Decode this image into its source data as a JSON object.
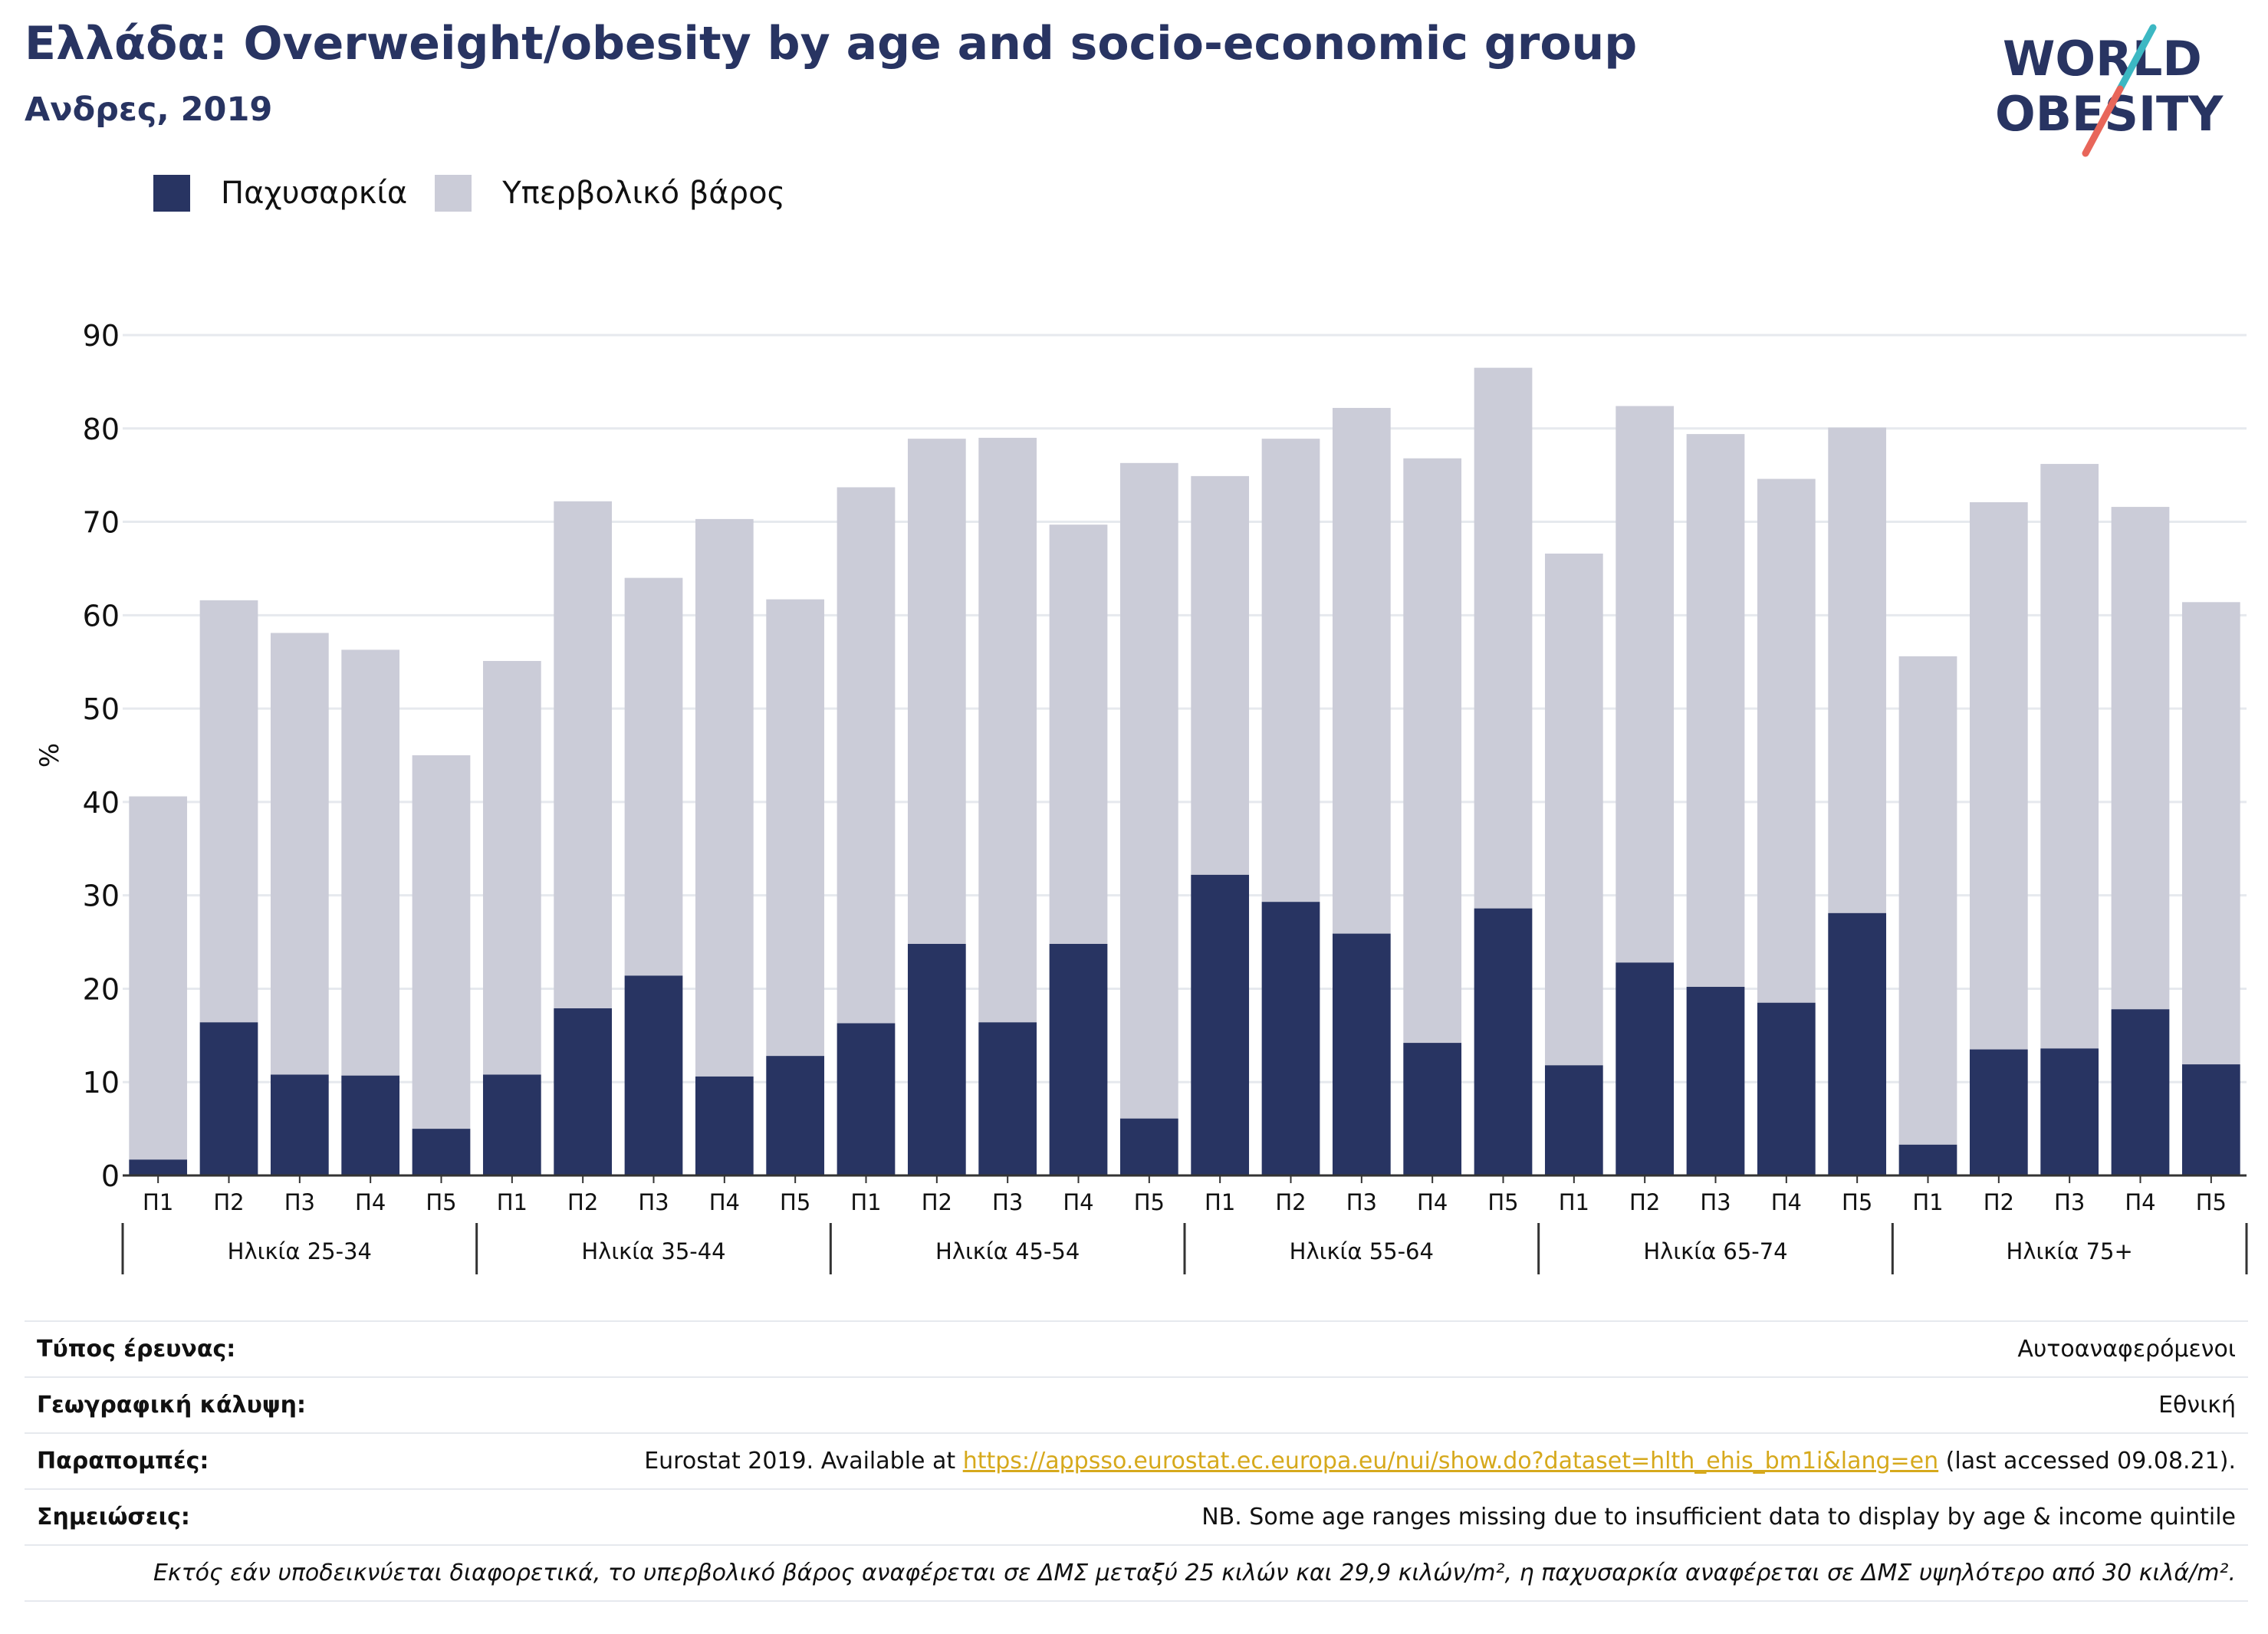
{
  "header": {
    "title": "Ελλάδα: Overweight/obesity by age and socio-economic group",
    "subtitle": "Ανδρες, 2019"
  },
  "logo": {
    "line1": "WORLD",
    "line2": "OBESITY",
    "colors": {
      "text": "#283462",
      "slash_teal": "#3cb8c3",
      "slash_red": "#e8665a"
    }
  },
  "colors": {
    "obesity": "#283462",
    "overweight": "#cbccd8",
    "grid": "#e6e9ee",
    "axis": "#333333",
    "link": "#d6a91c"
  },
  "chart_data": {
    "type": "bar",
    "stacked": true,
    "ylabel": "%",
    "ylim": [
      0,
      90
    ],
    "yticks": [
      0,
      10,
      20,
      30,
      40,
      50,
      60,
      70,
      80,
      90
    ],
    "grid": true,
    "legend_position": "top-left",
    "groups": [
      {
        "label": "Ηλικία 25-34",
        "categories": [
          "Π1",
          "Π2",
          "Π3",
          "Π4",
          "Π5"
        ],
        "obesity": [
          1.7,
          16.4,
          10.8,
          10.7,
          5.0
        ],
        "total": [
          40.6,
          61.6,
          58.1,
          56.3,
          45.0
        ]
      },
      {
        "label": "Ηλικία 35-44",
        "categories": [
          "Π1",
          "Π2",
          "Π3",
          "Π4",
          "Π5"
        ],
        "obesity": [
          10.8,
          17.9,
          21.4,
          10.6,
          12.8
        ],
        "total": [
          55.1,
          72.2,
          64.0,
          70.3,
          61.7
        ]
      },
      {
        "label": "Ηλικία 45-54",
        "categories": [
          "Π1",
          "Π2",
          "Π3",
          "Π4",
          "Π5"
        ],
        "obesity": [
          16.3,
          24.8,
          16.4,
          24.8,
          6.1
        ],
        "total": [
          73.7,
          78.9,
          79.0,
          69.7,
          76.3
        ]
      },
      {
        "label": "Ηλικία 55-64",
        "categories": [
          "Π1",
          "Π2",
          "Π3",
          "Π4",
          "Π5"
        ],
        "obesity": [
          32.2,
          29.3,
          25.9,
          14.2,
          28.6
        ],
        "total": [
          74.9,
          78.9,
          82.2,
          76.8,
          86.5
        ]
      },
      {
        "label": "Ηλικία 65-74",
        "categories": [
          "Π1",
          "Π2",
          "Π3",
          "Π4",
          "Π5"
        ],
        "obesity": [
          11.8,
          22.8,
          20.2,
          18.5,
          28.1
        ],
        "total": [
          66.6,
          82.4,
          79.4,
          74.6,
          80.1
        ]
      },
      {
        "label": "Ηλικία 75+",
        "categories": [
          "Π1",
          "Π2",
          "Π3",
          "Π4",
          "Π5"
        ],
        "obesity": [
          3.3,
          13.5,
          13.6,
          17.8,
          11.9
        ],
        "total": [
          55.6,
          72.1,
          76.2,
          71.6,
          61.4
        ]
      }
    ],
    "series": [
      {
        "name": "Παχυσαρκία",
        "key": "obesity"
      },
      {
        "name": "Υπερβολικό βάρος",
        "key": "overweight"
      }
    ]
  },
  "info": {
    "survey_type_label": "Τύπος έρευνας:",
    "survey_type_value": "Αυτοαναφερόμενοι",
    "coverage_label": "Γεωγραφική κάλυψη:",
    "coverage_value": "Εθνική",
    "references_label": "Παραπομπές:",
    "references_prefix": "Eurostat 2019. Available at ",
    "references_link": "https://appsso.eurostat.ec.europa.eu/nui/show.do?dataset=hlth_ehis_bm1i&lang=en",
    "references_suffix": " (last accessed 09.08.21).",
    "notes_label": "Σημειώσεις:",
    "notes_value": "NB. Some age ranges missing due to insufficient data to display by age & income quintile",
    "footnote": "Εκτός εάν υποδεικνύεται διαφορετικά, το υπερβολικό βάρος αναφέρεται σε ΔΜΣ μεταξύ 25 κιλών και 29,9 κιλών/m², η παχυσαρκία αναφέρεται σε ΔΜΣ υψηλότερο από 30 κιλά/m²."
  }
}
